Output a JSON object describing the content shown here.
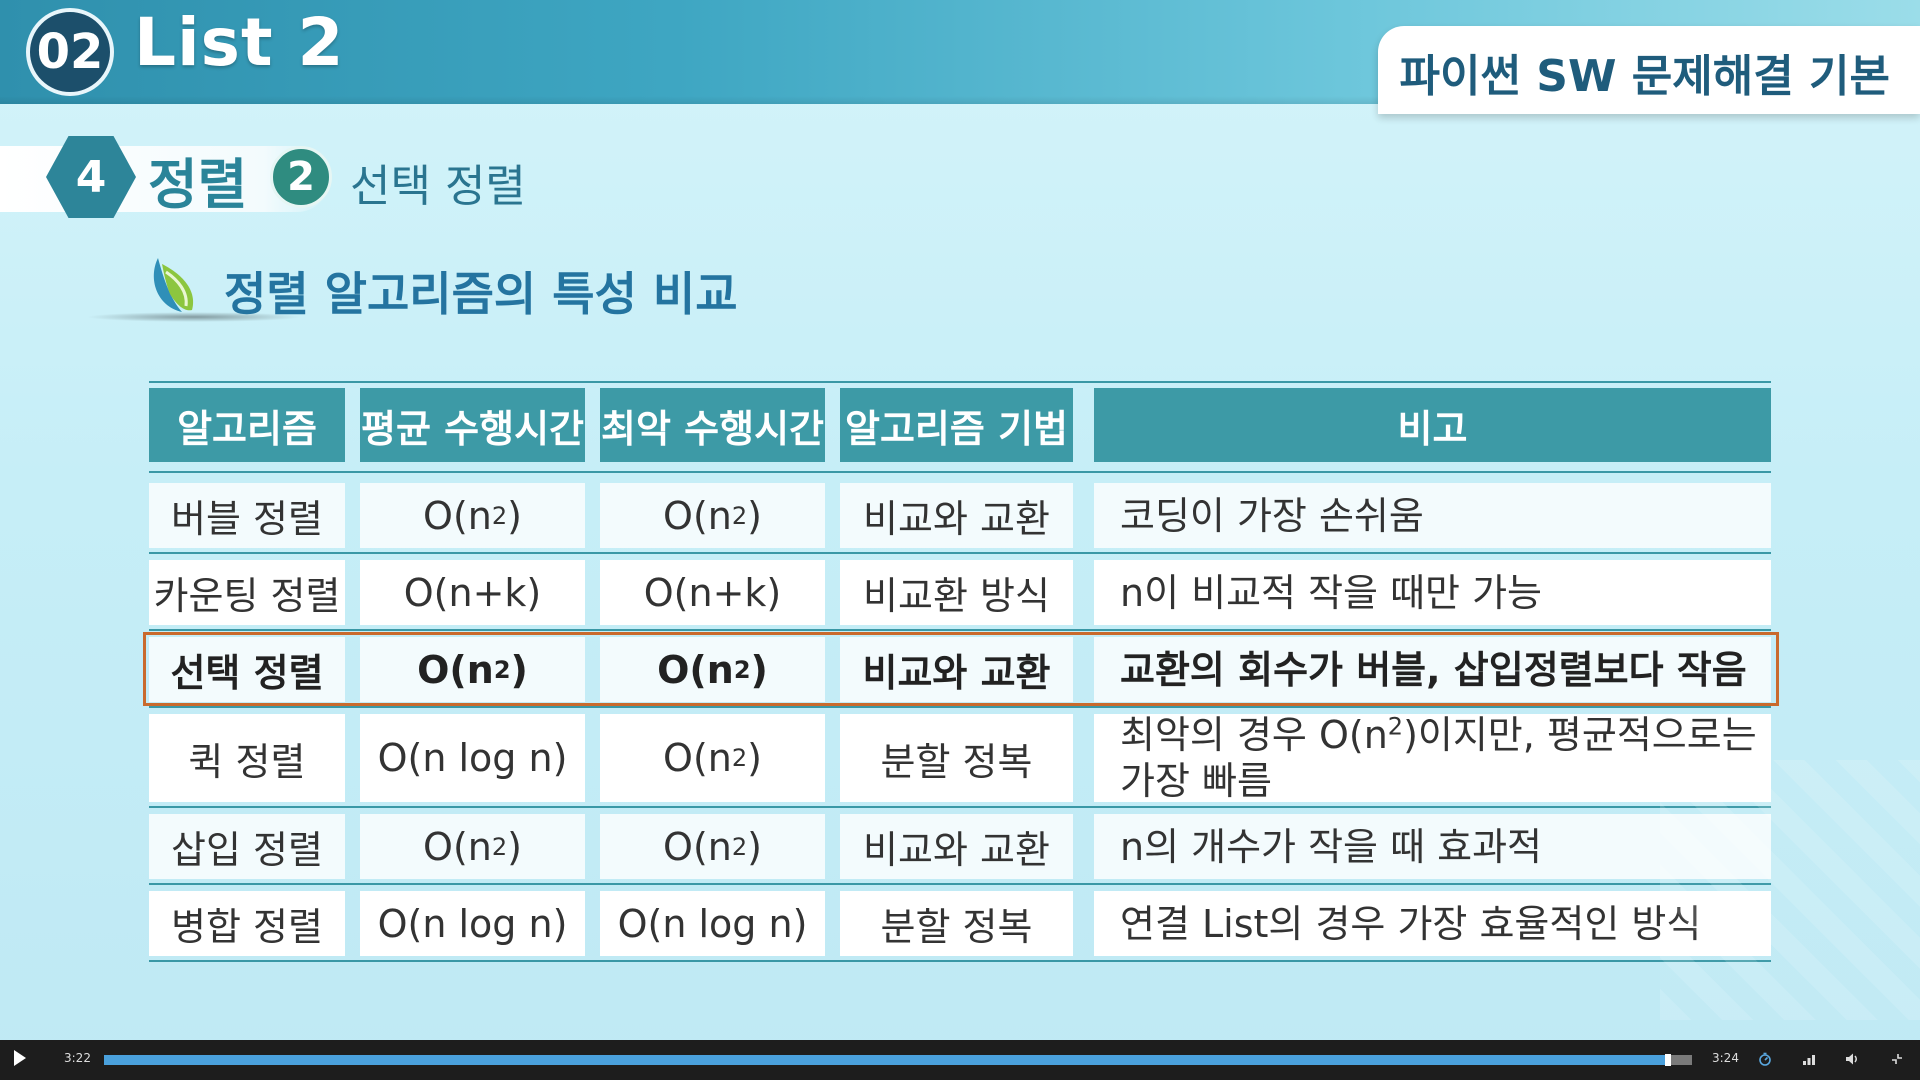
{
  "header": {
    "chapter_number": "02",
    "chapter_title": "List 2",
    "course_title": "파이썬 SW 문제해결 기본"
  },
  "section": {
    "number": "4",
    "title": "정렬",
    "sub_number": "2",
    "sub_title": "선택 정렬"
  },
  "heading": "정렬 알고리즘의 특성 비교",
  "table": {
    "headers": [
      "알고리즘",
      "평균 수행시간",
      "최악 수행시간",
      "알고리즘 기법",
      "비고"
    ],
    "rows": [
      {
        "name": "버블 정렬",
        "avg_base": "O(n",
        "avg_sup": "2",
        "avg_tail": ")",
        "worst_base": "O(n",
        "worst_sup": "2",
        "worst_tail": ")",
        "method": "비교와 교환",
        "note": "코딩이 가장 손쉬움"
      },
      {
        "name": "카운팅 정렬",
        "avg_base": "O(n+k)",
        "avg_sup": "",
        "avg_tail": "",
        "worst_base": "O(n+k)",
        "worst_sup": "",
        "worst_tail": "",
        "method": "비교환 방식",
        "note": "n이 비교적 작을 때만 가능"
      },
      {
        "name": "선택 정렬",
        "avg_base": "O(n",
        "avg_sup": "2",
        "avg_tail": ")",
        "worst_base": "O(n",
        "worst_sup": "2",
        "worst_tail": ")",
        "method": "비교와 교환",
        "note": "교환의 회수가 버블, 삽입정렬보다 작음"
      },
      {
        "name": "퀵 정렬",
        "avg_base": "O(n log n)",
        "avg_sup": "",
        "avg_tail": "",
        "worst_base": "O(n",
        "worst_sup": "2",
        "worst_tail": ")",
        "method": "분할 정복",
        "note_a": "최악의 경우 O(n",
        "note_sup": "2",
        "note_b": ")이지만, 평균적으로는",
        "note_c": "가장 빠름"
      },
      {
        "name": "삽입 정렬",
        "avg_base": "O(n",
        "avg_sup": "2",
        "avg_tail": ")",
        "worst_base": "O(n",
        "worst_sup": "2",
        "worst_tail": ")",
        "method": "비교와 교환",
        "note": "n의 개수가 작을 때 효과적"
      },
      {
        "name": "병합 정렬",
        "avg_base": "O(n log n)",
        "avg_sup": "",
        "avg_tail": "",
        "worst_base": "O(n log n)",
        "worst_sup": "",
        "worst_tail": "",
        "method": "분할 정복",
        "note": "연결 List의 경우 가장 효율적인 방식"
      }
    ]
  },
  "player": {
    "current_time": "3:22",
    "total_time": "3:24",
    "progress": 0.985,
    "icons": [
      "play-icon",
      "speed-icon",
      "quality-icon",
      "volume-icon",
      "fullscreen-exit-icon"
    ]
  }
}
